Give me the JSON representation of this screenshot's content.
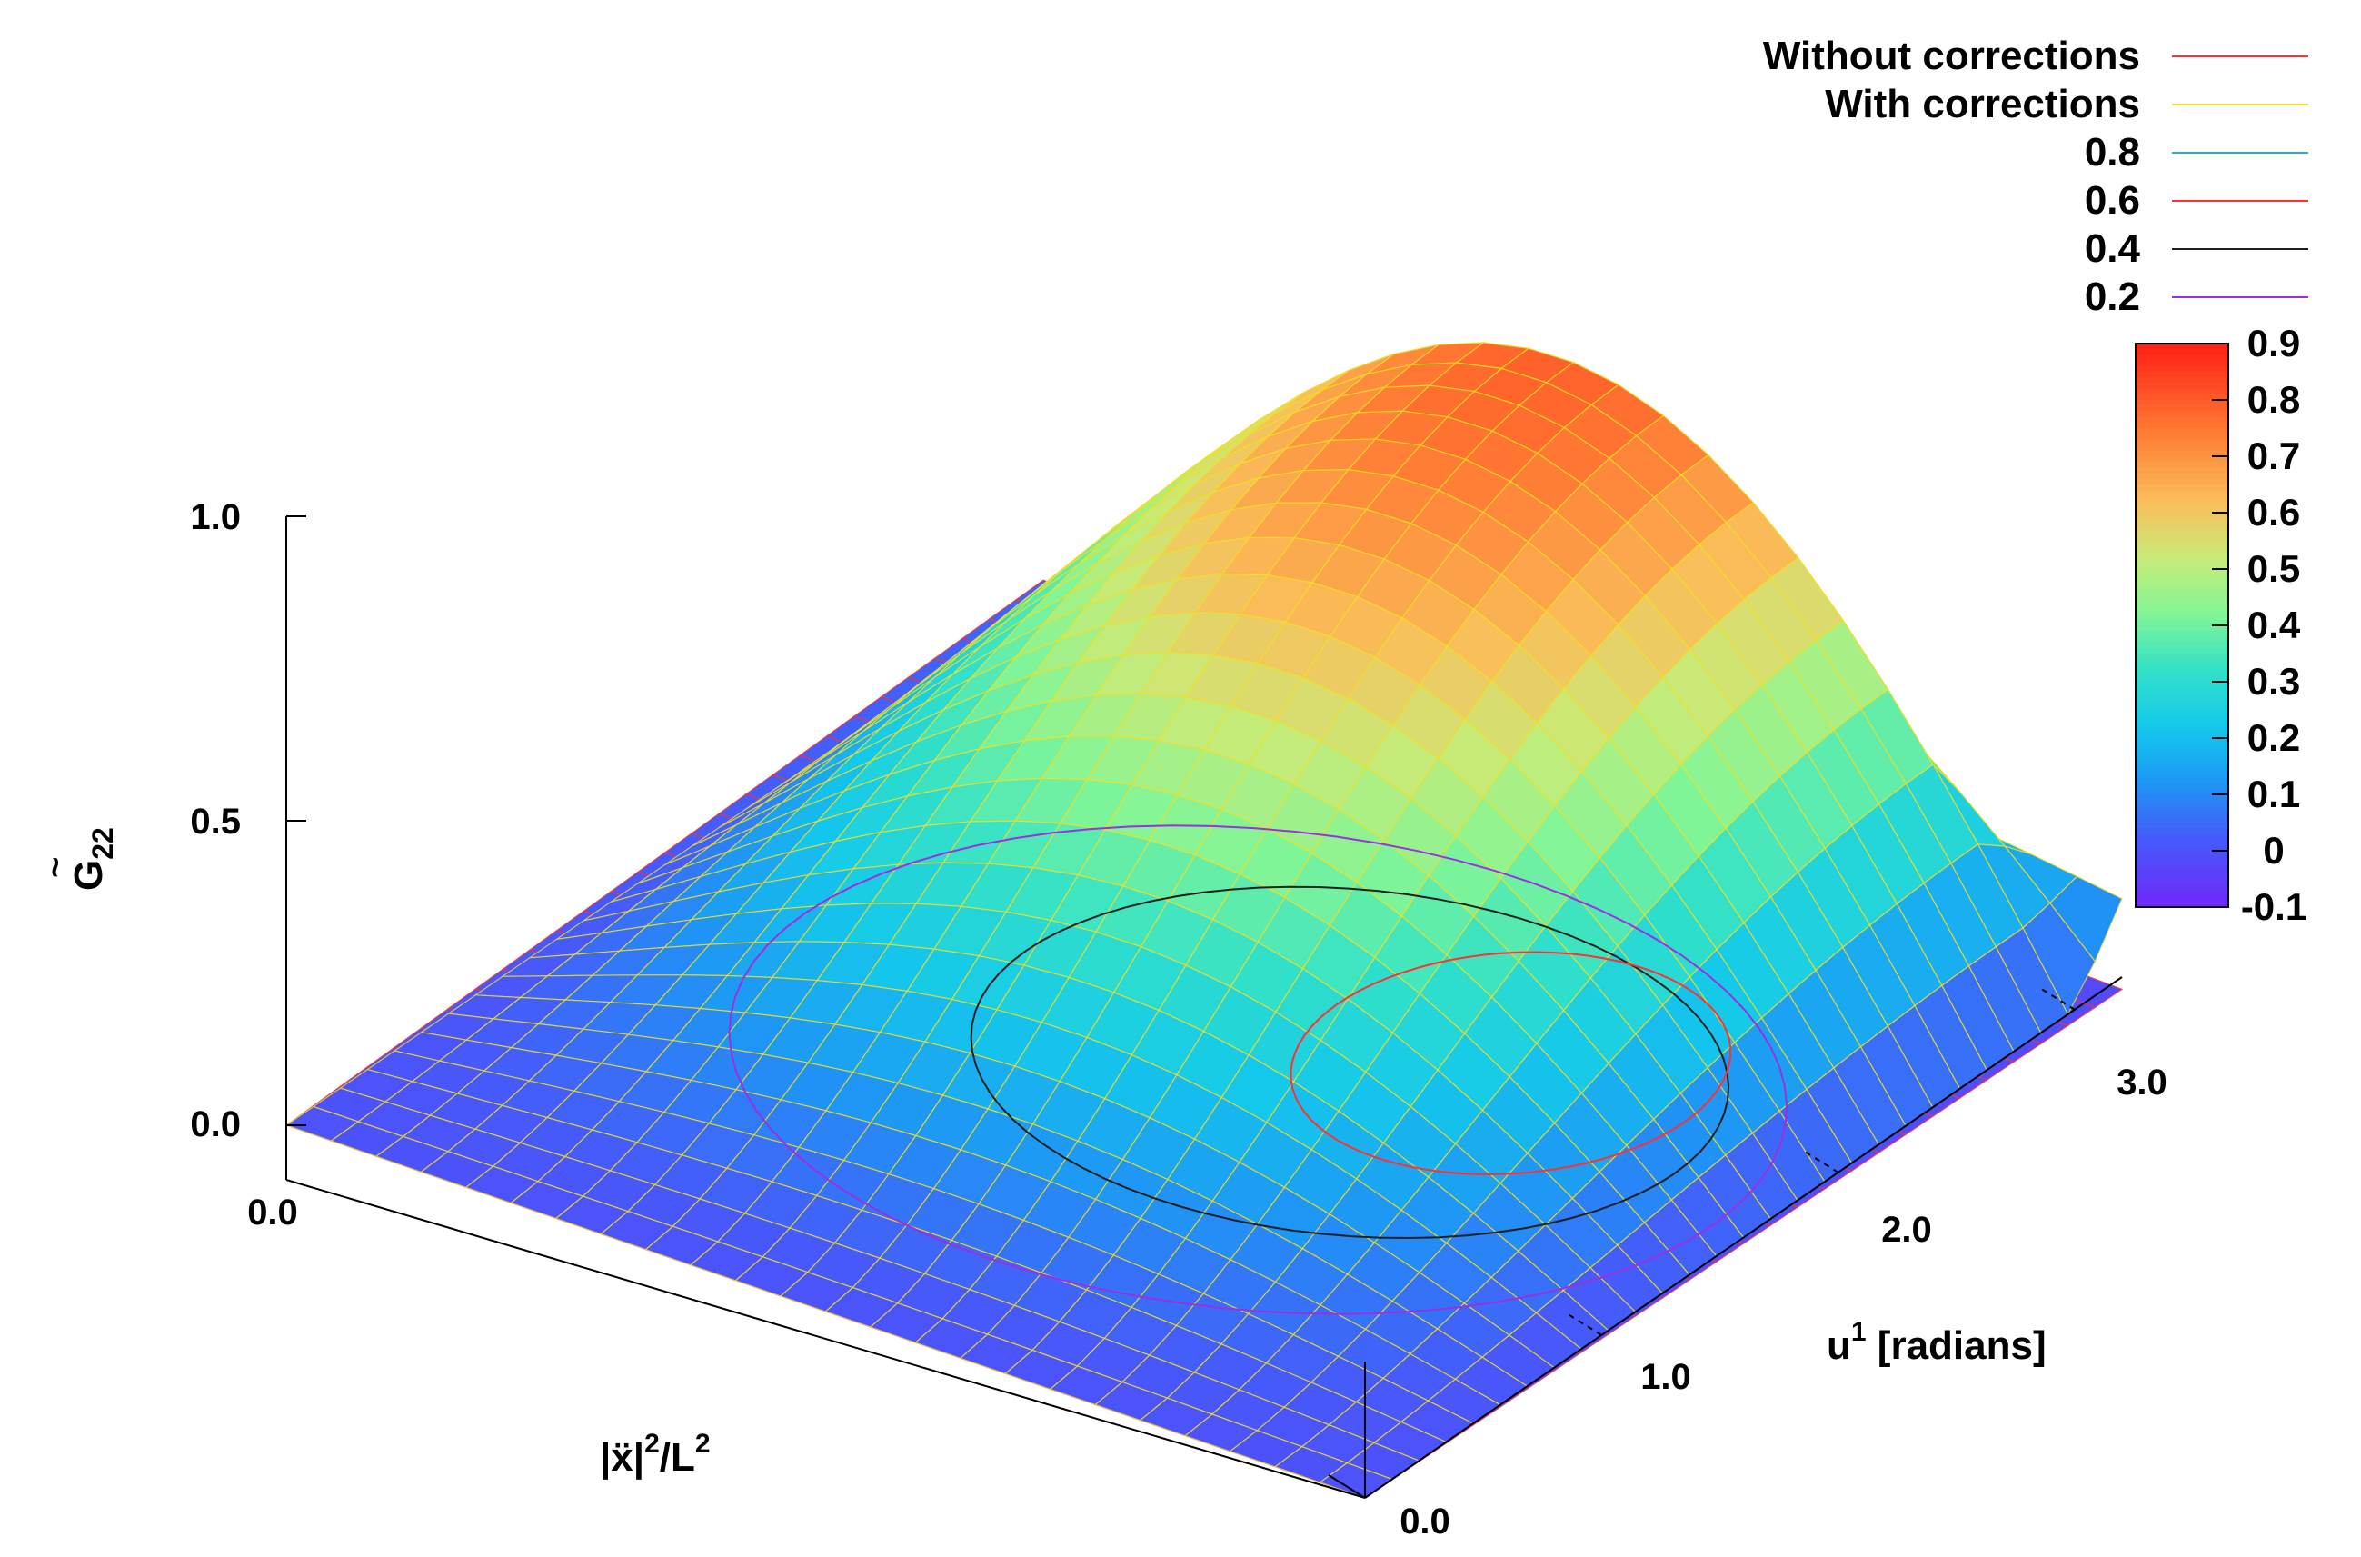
{
  "chart_data": {
    "type": "surface",
    "colormap": "rainbow",
    "axes": {
      "x": {
        "label": "|ẍ|",
        "label_sup1": "2",
        "label_mid": "/L",
        "label_sup2": "2",
        "ticks": [
          "0.0"
        ],
        "range": [
          0,
          1
        ]
      },
      "y": {
        "label": "u",
        "label_sup": "1",
        "label_rest": " [radians]",
        "ticks": [
          "0.0",
          "1.0",
          "2.0",
          "3.0"
        ],
        "range": [
          0,
          3.2
        ]
      },
      "z": {
        "label": "G",
        "label_tilde": "~",
        "label_sub": "22",
        "ticks": [
          "0.0",
          "0.5",
          "1.0"
        ],
        "range": [
          0,
          1
        ]
      }
    },
    "colorbar": {
      "range": [
        -0.1,
        0.9
      ],
      "ticks": [
        "0.9",
        "0.8",
        "0.7",
        "0.6",
        "0.5",
        "0.4",
        "0.3",
        "0.2",
        "0.1",
        "0",
        "-0.1"
      ]
    },
    "legend": {
      "position": "top-right",
      "entries": [
        {
          "label": "Without corrections",
          "color": "#ff3030"
        },
        {
          "label": "With corrections",
          "color": "#f2e020"
        },
        {
          "label": "0.8",
          "color": "#2aa8d8"
        },
        {
          "label": "0.6",
          "color": "#ff3030"
        },
        {
          "label": "0.4",
          "color": "#202020"
        },
        {
          "label": "0.2",
          "color": "#9b30e0"
        }
      ]
    },
    "series": [
      {
        "name": "Without corrections",
        "description_shape": "flat plane near 0 tilting slightly with u1",
        "z_at_corners": [
          0.0,
          0.0,
          0.0,
          0.0
        ]
      },
      {
        "name": "With corrections",
        "peak_value": 0.9,
        "peak_u1": 3.0,
        "peak_x": 0.95
      }
    ]
  }
}
